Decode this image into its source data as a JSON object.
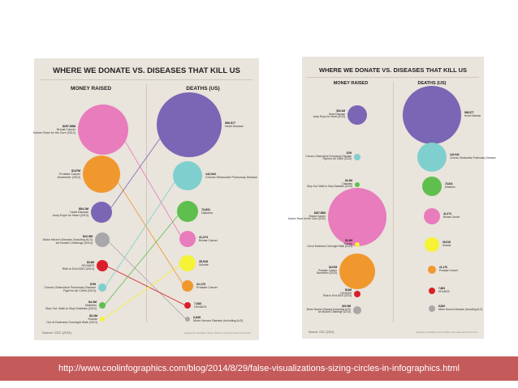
{
  "colors": {
    "pink": "#e87cbc",
    "purple": "#7a66b5",
    "orange": "#f0982e",
    "teal": "#7fcfcf",
    "green": "#5fbf4e",
    "gray": "#a8a8a8",
    "red": "#d81f2a",
    "yellow": "#f6f236"
  },
  "left": {
    "title": "WHERE WE DONATE VS. DISEASES THAT KILL US",
    "money_header": "MONEY RAISED",
    "deaths_header": "DEATHS (US)",
    "source": "Source: CDC (2011)",
    "fine_print": "Designed by Julia Belluz, Steven Hoffman, and Lazaro Gamio for Vox.com",
    "money": [
      {
        "amount": "$257.85M",
        "name": "Breast Cancer",
        "note": "Komen Race for the Cure (2012)",
        "color": "pink"
      },
      {
        "amount": "$147M",
        "name": "Prostate Cancer",
        "note": "Movember (2013)",
        "color": "orange"
      },
      {
        "amount": "$54.1M",
        "name": "Heart Disease",
        "note": "Jump Rope for Heart (2013)",
        "color": "purple"
      },
      {
        "amount": "$22.9M",
        "name": "Motor Neuron Disease (Including ALS)",
        "note": "Ice Bucket Challenge (2014)",
        "color": "gray"
      },
      {
        "amount": "$14M",
        "name": "HIV/AIDS",
        "note": "Ride to End AIDS (2014)",
        "color": "red"
      },
      {
        "amount": "$7M",
        "name": "Chronic Obstructive Pulmonary Disease",
        "note": "Fight for Air Climb (2013)",
        "color": "teal"
      },
      {
        "amount": "$4.2M",
        "name": "Diabetes",
        "note": "Step Out: Walk to Stop Diabetes (2013)",
        "color": "green"
      },
      {
        "amount": "$3.2M",
        "name": "Suicide",
        "note": "Out of Darkness Overnight Walk (2013)",
        "color": "yellow"
      }
    ],
    "deaths": [
      {
        "count": "596,577",
        "name": "Heart Disease",
        "color": "purple"
      },
      {
        "count": "142,942",
        "name": "Chronic Obstructive Pulmonary Disease",
        "color": "teal"
      },
      {
        "count": "73,831",
        "name": "Diabetes",
        "color": "green"
      },
      {
        "count": "41,374",
        "name": "Breast Cancer",
        "color": "pink"
      },
      {
        "count": "39,518",
        "name": "Suicide",
        "color": "yellow"
      },
      {
        "count": "21,176",
        "name": "Prostate Cancer",
        "color": "orange"
      },
      {
        "count": "7,683",
        "name": "HIV/AIDS",
        "color": "red"
      },
      {
        "count": "6,849",
        "name": "Motor Neuron Disease (Including ALS)",
        "color": "gray"
      }
    ]
  },
  "right": {
    "title": "WHERE WE DONATE VS. DISEASES THAT KILL US",
    "money_header": "MONEY RAISED",
    "deaths_header": "DEATHS (US)",
    "source": "Source: CDC (2011)",
    "fine_print": "Designed by Julia Belluz, Steven Hoffman, and Lazaro Gamio for Vox.com",
    "money": [
      {
        "amount": "$54.1M",
        "name": "Heart Disease",
        "note": "Jump Rope for Heart (2013)",
        "color": "purple"
      },
      {
        "amount": "$7M",
        "name": "Chronic Obstructive Pulmonary Disease",
        "note": "Fight for Air Climb (2013)",
        "color": "teal"
      },
      {
        "amount": "$4.2M",
        "name": "Diabetes",
        "note": "Step Out: Walk to Stop Diabetes (2013)",
        "color": "green"
      },
      {
        "amount": "$257.85M",
        "name": "Breast Cancer",
        "note": "Komen Race for the Cure (2012)",
        "color": "pink"
      },
      {
        "amount": "$3.2M",
        "name": "Suicide",
        "note": "Out of Darkness Overnight Walk (2013)",
        "color": "yellow"
      },
      {
        "amount": "$147M",
        "name": "Prostate Cancer",
        "note": "Movember (2013)",
        "color": "orange"
      },
      {
        "amount": "$14M",
        "name": "HIV/AIDS",
        "note": "Ride to End AIDS (2014)",
        "color": "red"
      },
      {
        "amount": "$22.9M",
        "name": "Motor Neuron Disease (Including ALS)",
        "note": "Ice Bucket Challenge (2014)",
        "color": "gray"
      }
    ],
    "deaths": [
      {
        "count": "596,577",
        "name": "Heart Disease",
        "color": "purple"
      },
      {
        "count": "142,942",
        "name": "Chronic Obstructive Pulmonary Disease",
        "color": "teal"
      },
      {
        "count": "73,831",
        "name": "Diabetes",
        "color": "green"
      },
      {
        "count": "41,374",
        "name": "Breast Cancer",
        "color": "pink"
      },
      {
        "count": "39,518",
        "name": "Suicide",
        "color": "yellow"
      },
      {
        "count": "21,176",
        "name": "Prostate Cancer",
        "color": "orange"
      },
      {
        "count": "7,683",
        "name": "HIV/AIDS",
        "color": "red"
      },
      {
        "count": "6,849",
        "name": "Motor Neuron Disease (Including ALS)",
        "color": "gray"
      }
    ]
  },
  "footer": {
    "url": "http://www.coolinfographics.com/blog/2014/8/29/false-visualizations-sizing-circles-in-infographics.html"
  }
}
